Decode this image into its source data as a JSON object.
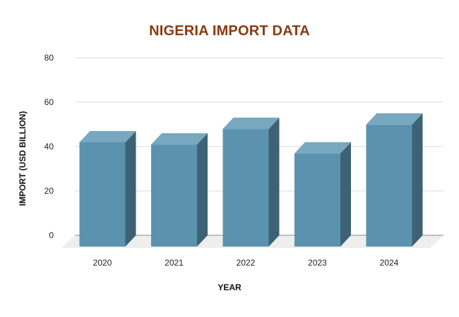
{
  "chart_data": {
    "type": "bar",
    "title": "NIGERIA IMPORT DATA",
    "xlabel": "YEAR",
    "ylabel": "IMPORT (USD BILLION)",
    "categories": [
      "2020",
      "2021",
      "2022",
      "2023",
      "2024"
    ],
    "values": [
      47,
      46,
      53,
      42,
      55
    ],
    "ylim": [
      0,
      80
    ],
    "yticks": [
      0,
      20,
      40,
      60,
      80
    ],
    "grid": true,
    "bar_style": "3d",
    "colors": {
      "bar_front": "#5b93ae",
      "bar_top": "#78a8c0",
      "bar_side": "#3d6275",
      "title": "#8b3a0f",
      "grid": "#d9d9d9",
      "floor": "#eeeeee"
    }
  }
}
